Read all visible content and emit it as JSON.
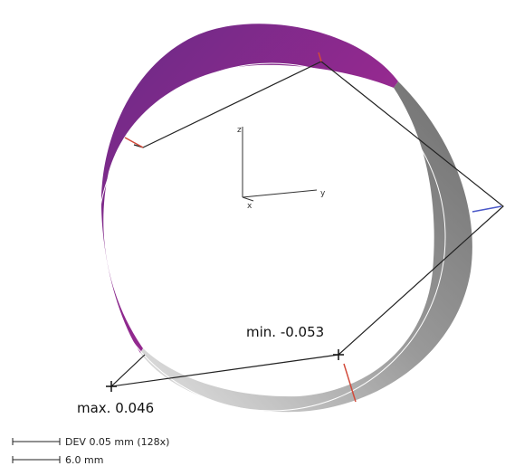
{
  "annotations": {
    "max_label": "max. 0.046",
    "min_label": "min. -0.053"
  },
  "axes": {
    "z_label": "z",
    "y_label": "y",
    "x_label": "x"
  },
  "scale_bar": {
    "dev_label": "DEV 0.05 mm (128x)",
    "length_label": "6.0 mm"
  },
  "colors": {
    "positive_deviation": "#8b2a8e",
    "negative_deviation": "#9a9a9a",
    "leader_line": "#222222",
    "tick_marker": "#d24a3a"
  }
}
